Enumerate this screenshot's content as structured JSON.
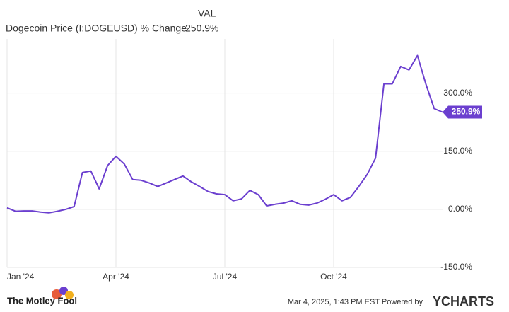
{
  "chart_data": {
    "type": "line",
    "legend_header": "VAL",
    "categories": [
      "Jan '24",
      null,
      null,
      null,
      null,
      null,
      null,
      null,
      null,
      null,
      null,
      null,
      null,
      "Apr '24",
      null,
      null,
      null,
      null,
      null,
      null,
      null,
      null,
      null,
      null,
      null,
      null,
      "Jul '24",
      null,
      null,
      null,
      null,
      null,
      null,
      null,
      null,
      null,
      null,
      null,
      null,
      "Oct '24",
      null,
      null,
      null,
      null,
      null,
      null,
      null,
      null,
      null,
      null,
      null,
      null,
      null
    ],
    "series": [
      {
        "name": "Dogecoin Price (I:DOGEUSD) % Change",
        "color": "#6b3fcf",
        "values": [
          4,
          -5,
          -4,
          -4,
          -7,
          -9,
          -5,
          0,
          7,
          95,
          99,
          53,
          113,
          137,
          117,
          77,
          75,
          68,
          59,
          68,
          77,
          86,
          71,
          59,
          46,
          40,
          38,
          22,
          27,
          49,
          38,
          9,
          13,
          16,
          22,
          13,
          11,
          16,
          26,
          38,
          22,
          31,
          59,
          90,
          132,
          324,
          324,
          369,
          360,
          397,
          324,
          260,
          250.9
        ],
        "value_labels": [
          null,
          null,
          null,
          null,
          null,
          null,
          null,
          null,
          null,
          null,
          null,
          null,
          null,
          null,
          null,
          null,
          null,
          null,
          null,
          null,
          null,
          null,
          null,
          null,
          null,
          null,
          null,
          null,
          null,
          null,
          null,
          null,
          null,
          null,
          null,
          null,
          null,
          null,
          null,
          null,
          null,
          null,
          null,
          null,
          null,
          null,
          null,
          null,
          null,
          null,
          null,
          null,
          "250.9%"
        ]
      }
    ],
    "ylim": [
      -150,
      440
    ],
    "yticks": [
      {
        "value": -150,
        "label": "-150.0%"
      },
      {
        "value": 0,
        "label": "0.00%"
      },
      {
        "value": 150,
        "label": "150.0%"
      },
      {
        "value": 300,
        "label": "300.0%"
      }
    ],
    "grid": true
  },
  "footer": {
    "brand": "The Motley Fool",
    "timestamp": "Mar 4, 2025, 1:43 PM EST  Powered by",
    "provider": "YCHARTS"
  }
}
